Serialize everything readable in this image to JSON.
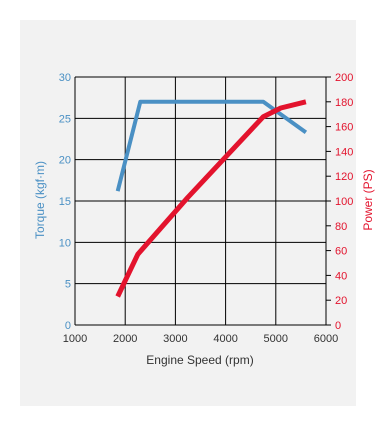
{
  "chart_data": {
    "type": "line",
    "xlabel": "Engine Speed (rpm)",
    "ylabel_left": "Torque (kgf·m)",
    "ylabel_right": "Power (PS)",
    "xlim": [
      1000,
      6000
    ],
    "ylim_left": [
      0,
      30
    ],
    "ylim_right": [
      0,
      200
    ],
    "x_ticks": [
      1000,
      2000,
      3000,
      4000,
      5000,
      6000
    ],
    "y_left_ticks": [
      0,
      5,
      10,
      15,
      20,
      25,
      30
    ],
    "y_right_ticks": [
      0,
      20,
      40,
      60,
      80,
      100,
      120,
      140,
      160,
      180,
      200
    ],
    "grid": true,
    "colors": {
      "torque": "#4a90c4",
      "power": "#e3132d",
      "grid": "#000000",
      "text": "#333333"
    },
    "series": [
      {
        "axis": "left",
        "points": [
          [
            1850,
            16.2
          ],
          [
            2300,
            27.0
          ],
          [
            4750,
            27.0
          ],
          [
            5600,
            23.3
          ]
        ]
      },
      {
        "axis": "right",
        "points": [
          [
            1850,
            23
          ],
          [
            2250,
            57
          ],
          [
            2750,
            80
          ],
          [
            3250,
            103
          ],
          [
            4750,
            168
          ],
          [
            5100,
            175
          ],
          [
            5600,
            180
          ]
        ]
      }
    ]
  }
}
